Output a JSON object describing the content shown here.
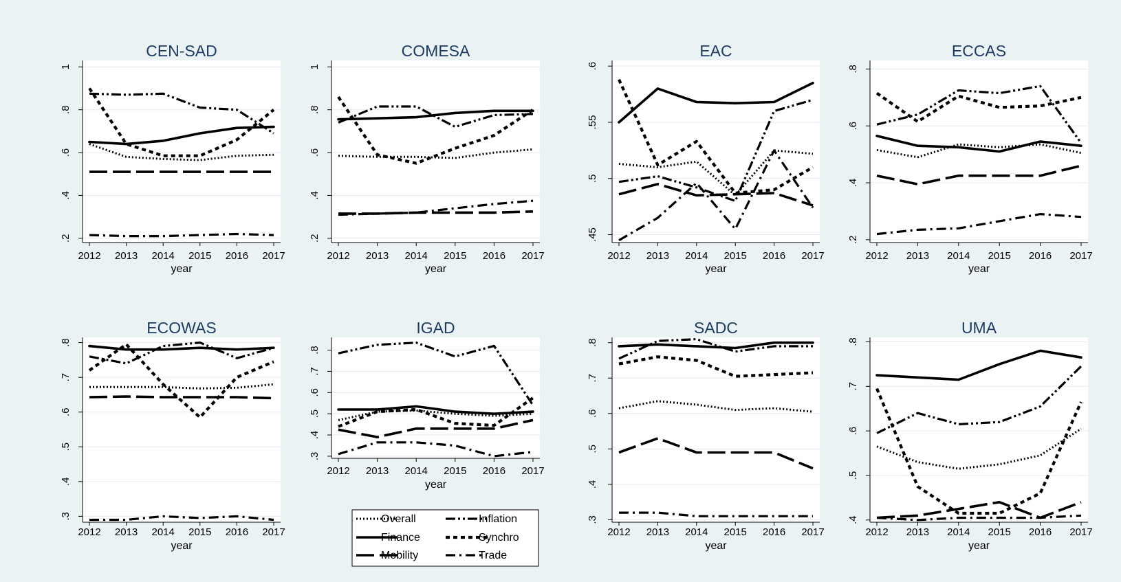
{
  "colors": {
    "background": "#eaf2f3",
    "plot_background": "#ffffff",
    "title": "#1e3a5f",
    "line": "#000000",
    "grid": "#e6ecee"
  },
  "legend": {
    "placement": "bottom-center",
    "items": [
      {
        "label": "Overall",
        "style": "dotted"
      },
      {
        "label": "Inflation",
        "style": "dashdotdot"
      },
      {
        "label": "Finance",
        "style": "longdash"
      },
      {
        "label": "Synchro",
        "style": "shortdash"
      },
      {
        "label": "Mobility",
        "style": "longdashgap"
      },
      {
        "label": "Trade",
        "style": "dashdot"
      }
    ]
  },
  "chart_data": [
    {
      "type": "line",
      "title": "CEN-SAD",
      "xlabel": "year",
      "x": [
        "2012",
        "2013",
        "2014",
        "2015",
        "2016",
        "2017"
      ],
      "ylim": [
        0.18,
        1.03
      ],
      "yticks": [
        {
          "v": 0.2,
          "t": ".2"
        },
        {
          "v": 0.4,
          "t": ".4"
        },
        {
          "v": 0.6,
          "t": ".6"
        },
        {
          "v": 0.8,
          "t": ".8"
        },
        {
          "v": 1.0,
          "t": "1"
        }
      ],
      "series": [
        {
          "name": "Overall",
          "values": [
            0.64,
            0.58,
            0.57,
            0.565,
            0.585,
            0.59
          ]
        },
        {
          "name": "Inflation",
          "values": [
            0.875,
            0.87,
            0.875,
            0.81,
            0.8,
            0.69
          ]
        },
        {
          "name": "Finance",
          "values": [
            0.65,
            0.64,
            0.655,
            0.69,
            0.715,
            0.72
          ]
        },
        {
          "name": "Synchro",
          "values": [
            0.9,
            0.64,
            0.585,
            0.585,
            0.66,
            0.8
          ]
        },
        {
          "name": "Mobility",
          "values": [
            0.51,
            0.51,
            0.51,
            0.51,
            0.51,
            0.51
          ]
        },
        {
          "name": "Trade",
          "values": [
            0.215,
            0.21,
            0.21,
            0.215,
            0.22,
            0.215
          ]
        }
      ]
    },
    {
      "type": "line",
      "title": "COMESA",
      "xlabel": "year",
      "x": [
        "2012",
        "2013",
        "2014",
        "2015",
        "2016",
        "2017"
      ],
      "ylim": [
        0.18,
        1.03
      ],
      "yticks": [
        {
          "v": 0.2,
          "t": ".2"
        },
        {
          "v": 0.4,
          "t": ".4"
        },
        {
          "v": 0.6,
          "t": ".6"
        },
        {
          "v": 0.8,
          "t": ".8"
        },
        {
          "v": 1.0,
          "t": "1"
        }
      ],
      "series": [
        {
          "name": "Overall",
          "values": [
            0.585,
            0.58,
            0.58,
            0.575,
            0.6,
            0.615
          ]
        },
        {
          "name": "Inflation",
          "values": [
            0.74,
            0.815,
            0.815,
            0.72,
            0.775,
            0.78
          ]
        },
        {
          "name": "Finance",
          "values": [
            0.755,
            0.76,
            0.765,
            0.785,
            0.795,
            0.795
          ]
        },
        {
          "name": "Synchro",
          "values": [
            0.86,
            0.59,
            0.55,
            0.62,
            0.68,
            0.8
          ]
        },
        {
          "name": "Mobility",
          "values": [
            0.315,
            0.315,
            0.32,
            0.32,
            0.32,
            0.325
          ]
        },
        {
          "name": "Trade",
          "values": [
            0.31,
            0.315,
            0.32,
            0.34,
            0.36,
            0.375
          ]
        }
      ]
    },
    {
      "type": "line",
      "title": "EAC",
      "xlabel": "year",
      "x": [
        "2012",
        "2013",
        "2014",
        "2015",
        "2016",
        "2017"
      ],
      "ylim": [
        0.443,
        0.605
      ],
      "yticks": [
        {
          "v": 0.45,
          "t": ".45"
        },
        {
          "v": 0.5,
          "t": ".5"
        },
        {
          "v": 0.55,
          "t": ".55"
        },
        {
          "v": 0.6,
          "t": ".6"
        }
      ],
      "series": [
        {
          "name": "Overall",
          "values": [
            0.513,
            0.51,
            0.515,
            0.485,
            0.525,
            0.522
          ]
        },
        {
          "name": "Inflation",
          "values": [
            0.497,
            0.502,
            0.492,
            0.48,
            0.56,
            0.57
          ]
        },
        {
          "name": "Finance",
          "values": [
            0.55,
            0.58,
            0.568,
            0.567,
            0.568,
            0.585
          ]
        },
        {
          "name": "Synchro",
          "values": [
            0.588,
            0.512,
            0.533,
            0.487,
            0.49,
            0.51
          ]
        },
        {
          "name": "Mobility",
          "values": [
            0.486,
            0.495,
            0.485,
            0.486,
            0.487,
            0.476
          ]
        },
        {
          "name": "Trade",
          "values": [
            0.445,
            0.465,
            0.496,
            0.455,
            0.525,
            0.474
          ]
        }
      ]
    },
    {
      "type": "line",
      "title": "ECCAS",
      "xlabel": "year",
      "x": [
        "2012",
        "2013",
        "2014",
        "2015",
        "2016",
        "2017"
      ],
      "ylim": [
        0.19,
        0.83
      ],
      "yticks": [
        {
          "v": 0.2,
          "t": ".2"
        },
        {
          "v": 0.4,
          "t": ".4"
        },
        {
          "v": 0.6,
          "t": ".6"
        },
        {
          "v": 0.8,
          "t": ".8"
        }
      ],
      "series": [
        {
          "name": "Overall",
          "values": [
            0.515,
            0.49,
            0.535,
            0.525,
            0.535,
            0.505
          ]
        },
        {
          "name": "Inflation",
          "values": [
            0.605,
            0.64,
            0.725,
            0.715,
            0.74,
            0.54
          ]
        },
        {
          "name": "Finance",
          "values": [
            0.565,
            0.53,
            0.525,
            0.51,
            0.545,
            0.53
          ]
        },
        {
          "name": "Synchro",
          "values": [
            0.715,
            0.615,
            0.705,
            0.665,
            0.67,
            0.7
          ]
        },
        {
          "name": "Mobility",
          "values": [
            0.425,
            0.395,
            0.425,
            0.425,
            0.425,
            0.46
          ]
        },
        {
          "name": "Trade",
          "values": [
            0.22,
            0.235,
            0.24,
            0.265,
            0.29,
            0.28
          ]
        }
      ]
    },
    {
      "type": "line",
      "title": "ECOWAS",
      "xlabel": "year",
      "x": [
        "2012",
        "2013",
        "2014",
        "2015",
        "2016",
        "2017"
      ],
      "ylim": [
        0.283,
        0.815
      ],
      "yticks": [
        {
          "v": 0.3,
          "t": ".3"
        },
        {
          "v": 0.4,
          "t": ".4"
        },
        {
          "v": 0.5,
          "t": ".5"
        },
        {
          "v": 0.6,
          "t": ".6"
        },
        {
          "v": 0.7,
          "t": ".7"
        },
        {
          "v": 0.8,
          "t": ".8"
        }
      ],
      "series": [
        {
          "name": "Overall",
          "values": [
            0.672,
            0.672,
            0.672,
            0.668,
            0.67,
            0.68
          ]
        },
        {
          "name": "Inflation",
          "values": [
            0.76,
            0.74,
            0.79,
            0.8,
            0.755,
            0.785
          ]
        },
        {
          "name": "Finance",
          "values": [
            0.79,
            0.78,
            0.78,
            0.785,
            0.78,
            0.785
          ]
        },
        {
          "name": "Synchro",
          "values": [
            0.72,
            0.795,
            0.68,
            0.585,
            0.7,
            0.745
          ]
        },
        {
          "name": "Mobility",
          "values": [
            0.643,
            0.645,
            0.643,
            0.643,
            0.643,
            0.64
          ]
        },
        {
          "name": "Trade",
          "values": [
            0.29,
            0.29,
            0.3,
            0.295,
            0.3,
            0.29
          ]
        }
      ]
    },
    {
      "type": "line",
      "title": "IGAD",
      "xlabel": "year",
      "x": [
        "2012",
        "2013",
        "2014",
        "2015",
        "2016",
        "2017"
      ],
      "ylim": [
        0.29,
        0.86
      ],
      "yticks": [
        {
          "v": 0.3,
          "t": ".3"
        },
        {
          "v": 0.4,
          "t": ".4"
        },
        {
          "v": 0.5,
          "t": ".5"
        },
        {
          "v": 0.6,
          "t": ".6"
        },
        {
          "v": 0.7,
          "t": ".7"
        },
        {
          "v": 0.8,
          "t": ".8"
        }
      ],
      "series": [
        {
          "name": "Overall",
          "values": [
            0.47,
            0.51,
            0.515,
            0.5,
            0.49,
            0.5
          ]
        },
        {
          "name": "Inflation",
          "values": [
            0.785,
            0.825,
            0.835,
            0.77,
            0.82,
            0.54
          ]
        },
        {
          "name": "Finance",
          "values": [
            0.52,
            0.52,
            0.535,
            0.51,
            0.5,
            0.51
          ]
        },
        {
          "name": "Synchro",
          "values": [
            0.44,
            0.51,
            0.52,
            0.455,
            0.445,
            0.575
          ]
        },
        {
          "name": "Mobility",
          "values": [
            0.425,
            0.39,
            0.43,
            0.43,
            0.43,
            0.47
          ]
        },
        {
          "name": "Trade",
          "values": [
            0.31,
            0.365,
            0.365,
            0.35,
            0.3,
            0.32
          ]
        }
      ]
    },
    {
      "type": "line",
      "title": "SADC",
      "xlabel": "year",
      "x": [
        "2012",
        "2013",
        "2014",
        "2015",
        "2016",
        "2017"
      ],
      "ylim": [
        0.293,
        0.815
      ],
      "yticks": [
        {
          "v": 0.3,
          "t": ".3"
        },
        {
          "v": 0.4,
          "t": ".4"
        },
        {
          "v": 0.5,
          "t": ".5"
        },
        {
          "v": 0.6,
          "t": ".6"
        },
        {
          "v": 0.7,
          "t": ".7"
        },
        {
          "v": 0.8,
          "t": ".8"
        }
      ],
      "series": [
        {
          "name": "Overall",
          "values": [
            0.615,
            0.635,
            0.625,
            0.61,
            0.615,
            0.605
          ]
        },
        {
          "name": "Inflation",
          "values": [
            0.755,
            0.805,
            0.81,
            0.775,
            0.79,
            0.79
          ]
        },
        {
          "name": "Finance",
          "values": [
            0.79,
            0.795,
            0.79,
            0.785,
            0.8,
            0.8
          ]
        },
        {
          "name": "Synchro",
          "values": [
            0.74,
            0.76,
            0.75,
            0.705,
            0.71,
            0.715
          ]
        },
        {
          "name": "Mobility",
          "values": [
            0.49,
            0.53,
            0.49,
            0.49,
            0.49,
            0.445
          ]
        },
        {
          "name": "Trade",
          "values": [
            0.32,
            0.32,
            0.31,
            0.31,
            0.31,
            0.31
          ]
        }
      ]
    },
    {
      "type": "line",
      "title": "UMA",
      "xlabel": "year",
      "x": [
        "2012",
        "2013",
        "2014",
        "2015",
        "2016",
        "2017"
      ],
      "ylim": [
        0.395,
        0.81
      ],
      "yticks": [
        {
          "v": 0.4,
          "t": ".4"
        },
        {
          "v": 0.5,
          "t": ".5"
        },
        {
          "v": 0.6,
          "t": ".6"
        },
        {
          "v": 0.7,
          "t": ".7"
        },
        {
          "v": 0.8,
          "t": ".8"
        }
      ],
      "series": [
        {
          "name": "Overall",
          "values": [
            0.565,
            0.53,
            0.515,
            0.525,
            0.545,
            0.605
          ]
        },
        {
          "name": "Inflation",
          "values": [
            0.595,
            0.64,
            0.615,
            0.62,
            0.655,
            0.745
          ]
        },
        {
          "name": "Finance",
          "values": [
            0.725,
            0.72,
            0.715,
            0.75,
            0.78,
            0.765
          ]
        },
        {
          "name": "Synchro",
          "values": [
            0.695,
            0.475,
            0.415,
            0.415,
            0.46,
            0.665
          ]
        },
        {
          "name": "Mobility",
          "values": [
            0.405,
            0.41,
            0.425,
            0.44,
            0.405,
            0.44
          ]
        },
        {
          "name": "Trade",
          "values": [
            0.405,
            0.4,
            0.405,
            0.405,
            0.405,
            0.41
          ]
        }
      ]
    }
  ]
}
